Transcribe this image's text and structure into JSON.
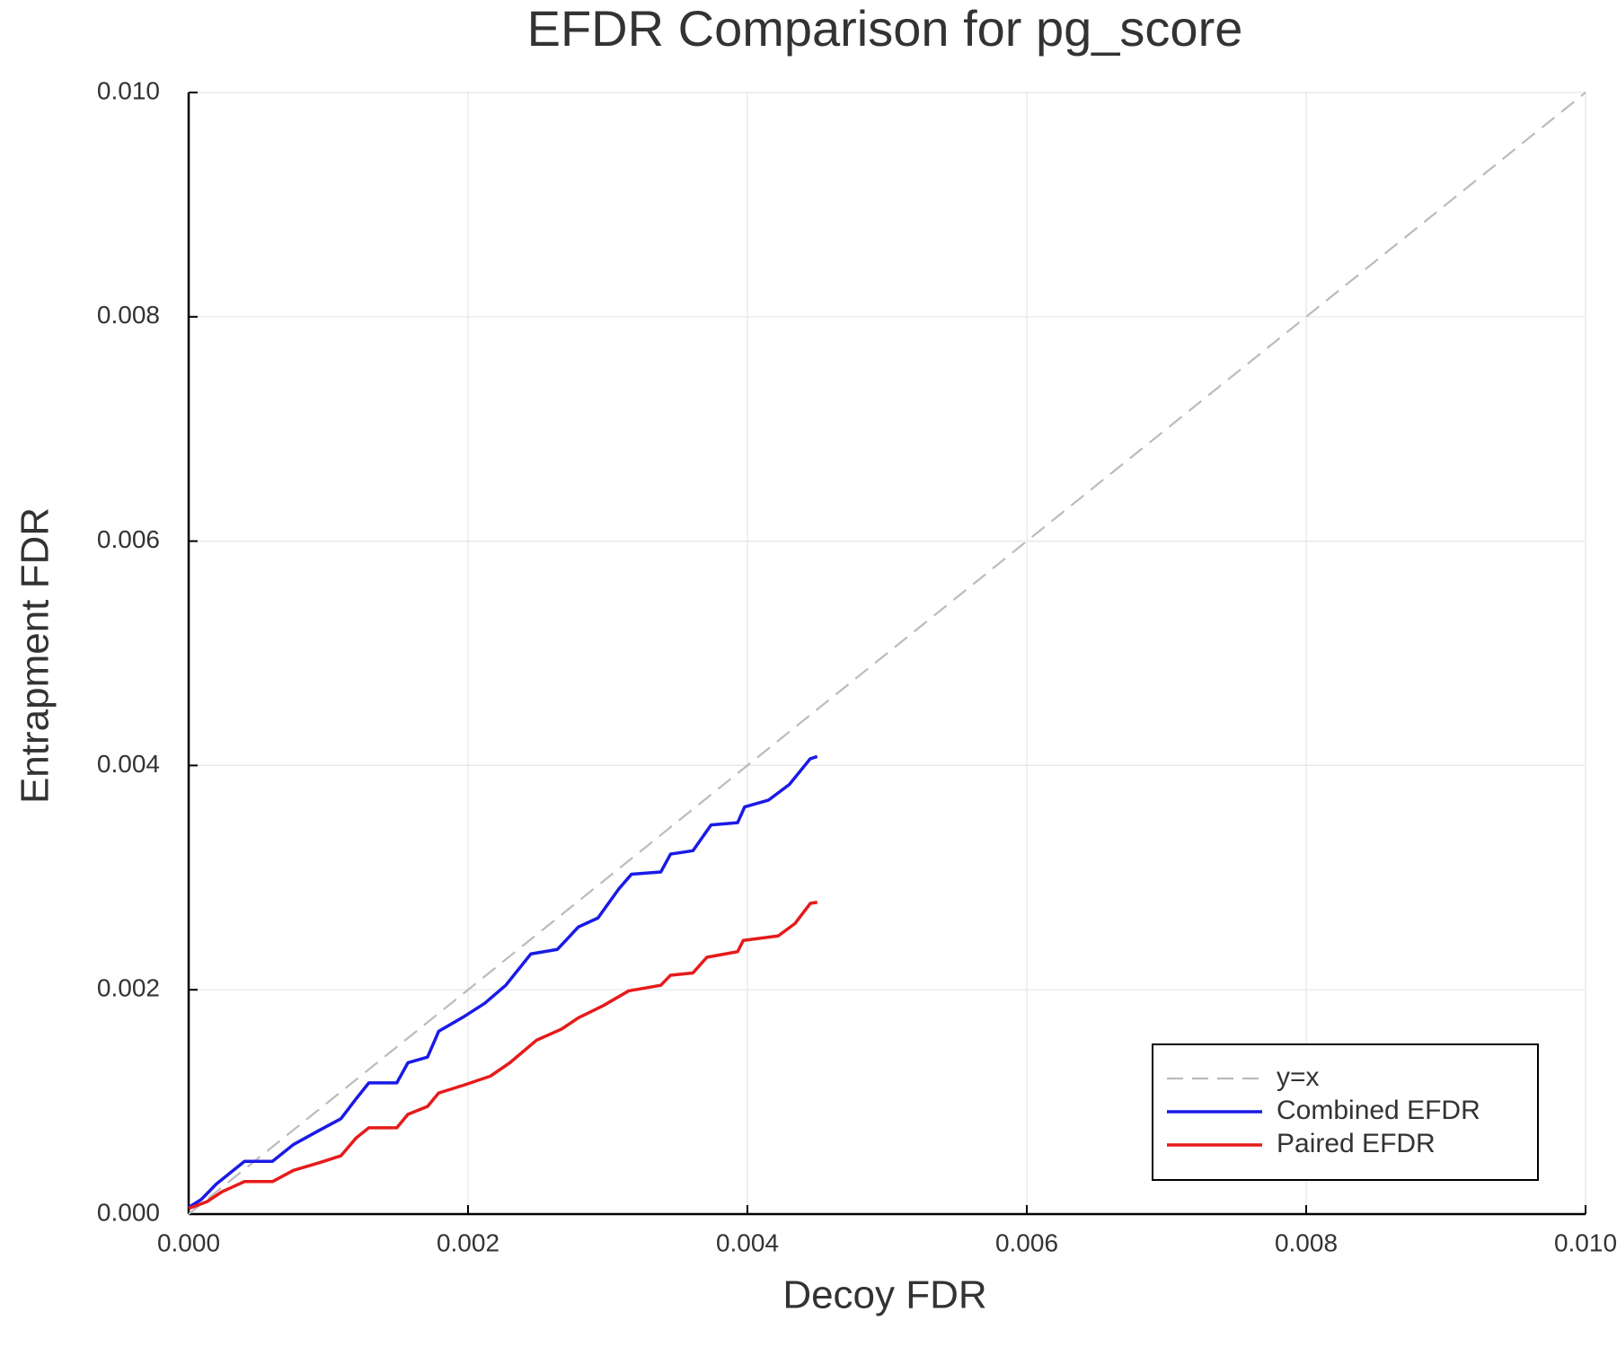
{
  "chart_data": {
    "type": "line",
    "title": "EFDR Comparison for pg_score",
    "x_label": "Decoy FDR",
    "y_label": "Entrapment FDR",
    "xlim": [
      0,
      0.01
    ],
    "ylim": [
      0,
      0.01
    ],
    "xticks": [
      {
        "value": 0,
        "label": "0.000"
      },
      {
        "value": 0.002,
        "label": "0.002"
      },
      {
        "value": 0.004,
        "label": "0.004"
      },
      {
        "value": 0.006,
        "label": "0.006"
      },
      {
        "value": 0.008,
        "label": "0.008"
      },
      {
        "value": 0.01,
        "label": "0.010"
      }
    ],
    "yticks": [
      {
        "value": 0,
        "label": "0.000"
      },
      {
        "value": 0.002,
        "label": "0.002"
      },
      {
        "value": 0.004,
        "label": "0.004"
      },
      {
        "value": 0.006,
        "label": "0.006"
      },
      {
        "value": 0.008,
        "label": "0.008"
      },
      {
        "value": 0.01,
        "label": "0.010"
      }
    ],
    "grid": true,
    "legend": "lower right",
    "series": [
      {
        "name": "y=x",
        "color": "#bbbbbb",
        "dashed": true,
        "x": [
          0,
          0.01
        ],
        "values": [
          0,
          0.01
        ]
      },
      {
        "name": "Combined EFDR",
        "color": "#1a1ae6",
        "dashed": false,
        "x": [
          0,
          9e-05,
          0.0002,
          0.0004,
          0.0006,
          0.00075,
          0.00094,
          0.00109,
          0.0012,
          0.00129,
          0.00149,
          0.00157,
          0.00171,
          0.00179,
          0.00197,
          0.00212,
          0.00227,
          0.00245,
          0.00264,
          0.00279,
          0.00293,
          0.00308,
          0.00317,
          0.00338,
          0.00345,
          0.00361,
          0.00374,
          0.00393,
          0.00398,
          0.00415,
          0.0043,
          0.00445,
          0.0045
        ],
        "values": [
          6e-05,
          0.00013,
          0.00027,
          0.00047,
          0.00047,
          0.00062,
          0.00075,
          0.00085,
          0.00103,
          0.00117,
          0.00117,
          0.00135,
          0.0014,
          0.00163,
          0.00176,
          0.00188,
          0.00204,
          0.00232,
          0.00236,
          0.00256,
          0.00264,
          0.0029,
          0.00303,
          0.00305,
          0.00321,
          0.00324,
          0.00347,
          0.00349,
          0.00363,
          0.00369,
          0.00383,
          0.00406,
          0.00408
        ]
      },
      {
        "name": "Paired EFDR",
        "color": "#e61a1a",
        "dashed": false,
        "x": [
          0,
          0.00013,
          0.00024,
          0.0004,
          0.0006,
          0.00075,
          0.00094,
          0.00109,
          0.0012,
          0.00129,
          0.00149,
          0.00157,
          0.00171,
          0.00179,
          0.00197,
          0.00216,
          0.0023,
          0.00249,
          0.00267,
          0.00279,
          0.00297,
          0.00315,
          0.00338,
          0.00345,
          0.00361,
          0.00371,
          0.00393,
          0.00397,
          0.00422,
          0.00434,
          0.00445,
          0.0045
        ],
        "values": [
          5e-05,
          0.00011,
          0.0002,
          0.00029,
          0.00029,
          0.00039,
          0.00046,
          0.00052,
          0.00068,
          0.00077,
          0.00077,
          0.00089,
          0.00096,
          0.00108,
          0.00115,
          0.00123,
          0.00135,
          0.00155,
          0.00165,
          0.00175,
          0.00186,
          0.00199,
          0.00204,
          0.00213,
          0.00215,
          0.00229,
          0.00234,
          0.00244,
          0.00248,
          0.00259,
          0.00277,
          0.00278
        ]
      }
    ]
  }
}
